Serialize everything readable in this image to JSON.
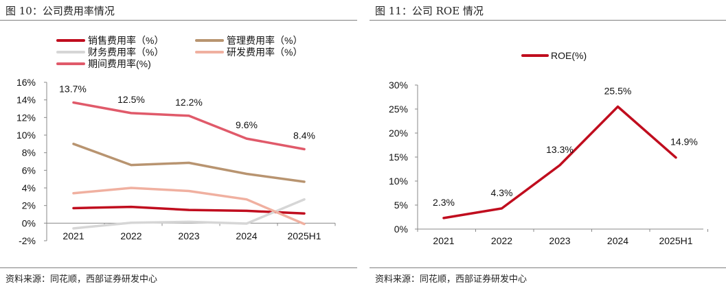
{
  "left": {
    "title": "图 10：公司费用率情况",
    "source": "资料来源：同花顺，西部证券研发中心"
  },
  "right": {
    "title": "图 11：公司 ROE 情况",
    "source": "资料来源：同花顺，西部证券研发中心"
  },
  "chart_data": [
    {
      "type": "line",
      "title": "公司费用率情况",
      "categories": [
        "2021",
        "2022",
        "2023",
        "2024",
        "2025H1"
      ],
      "ylim": [
        -2,
        16
      ],
      "yticks": [
        -2,
        0,
        2,
        4,
        6,
        8,
        10,
        12,
        14,
        16
      ],
      "ytick_labels": [
        "-2%",
        "0%",
        "2%",
        "4%",
        "6%",
        "8%",
        "10%",
        "12%",
        "14%",
        "16%"
      ],
      "grid": false,
      "legend_position": "top-left",
      "series": [
        {
          "name": "销售费用率（%）",
          "color": "#c00d1e",
          "values": [
            1.7,
            1.85,
            1.5,
            1.4,
            1.1
          ]
        },
        {
          "name": "管理费用率（%）",
          "color": "#b89470",
          "values": [
            9.0,
            6.6,
            6.85,
            5.6,
            4.7
          ]
        },
        {
          "name": "财务费用率（%）",
          "color": "#d6d6d6",
          "values": [
            -0.6,
            0.05,
            0.15,
            -0.05,
            2.7
          ]
        },
        {
          "name": "研发费用率（%）",
          "color": "#f0b0a0",
          "values": [
            3.4,
            4.0,
            3.65,
            2.7,
            -0.1
          ]
        },
        {
          "name": "期间费用率(%)",
          "color": "#e05a6a",
          "values": [
            13.7,
            12.5,
            12.2,
            9.6,
            8.4
          ],
          "data_labels": [
            "13.7%",
            "12.5%",
            "12.2%",
            "9.6%",
            "8.4%"
          ]
        }
      ]
    },
    {
      "type": "line",
      "title": "公司 ROE 情况",
      "categories": [
        "2021",
        "2022",
        "2023",
        "2024",
        "2025H1"
      ],
      "ylim": [
        0,
        30
      ],
      "yticks": [
        0,
        5,
        10,
        15,
        20,
        25,
        30
      ],
      "ytick_labels": [
        "0%",
        "5%",
        "10%",
        "15%",
        "20%",
        "25%",
        "30%"
      ],
      "grid": false,
      "legend_position": "top-center",
      "series": [
        {
          "name": "ROE(%)",
          "color": "#c00d1e",
          "values": [
            2.3,
            4.3,
            13.3,
            25.5,
            14.9
          ],
          "data_labels": [
            "2.3%",
            "4.3%",
            "13.3%",
            "25.5%",
            "14.9%"
          ]
        }
      ]
    }
  ]
}
